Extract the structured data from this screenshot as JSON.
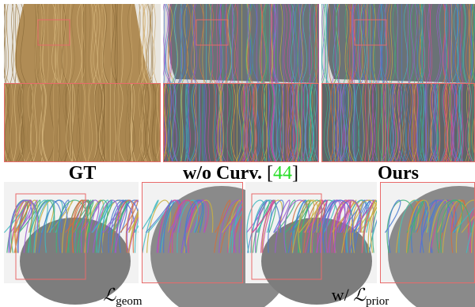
{
  "figure": {
    "top_row": [
      {
        "label": "GT"
      },
      {
        "label": "w/o Curv.",
        "ref_open": "[",
        "ref": "44",
        "ref_close": "]"
      },
      {
        "label": "Ours"
      }
    ],
    "bottom_row": [
      {
        "symbol": "ℒ",
        "subscript": "geom"
      },
      {
        "prefix": "w/",
        "symbol": "ℒ",
        "subscript": "prior"
      }
    ]
  }
}
